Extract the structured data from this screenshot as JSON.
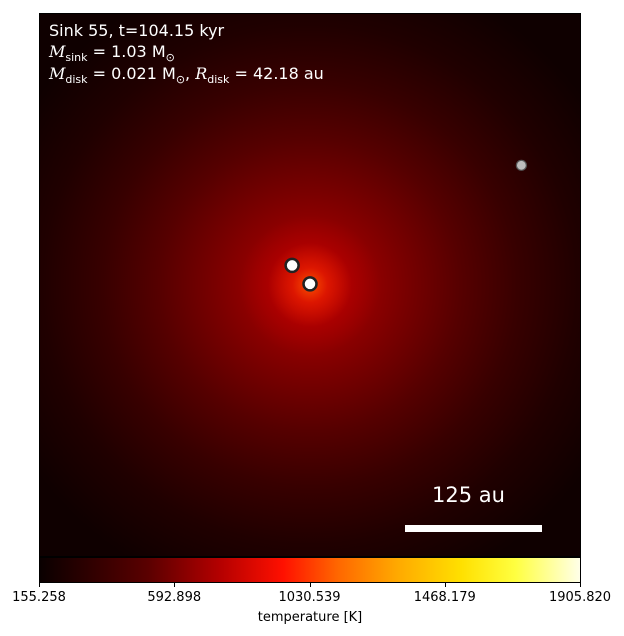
{
  "chart_data": {
    "type": "heatmap",
    "annotation": {
      "line1": "Sink 55, t=104.15 kyr",
      "line2_sym": "M",
      "line2_sub": "sink",
      "line2_rest": " = 1.03 M",
      "line2_sun": "⊙",
      "line3_sym": "M",
      "line3_sub": "disk",
      "line3_mid": " = 0.021 M",
      "line3_sun": "⊙",
      "line3_sym2": "R",
      "line3_sub2": "disk",
      "line3_rest": " = 42.18 au"
    },
    "scale_bar_label": "125 au",
    "colorbar": {
      "label": "temperature [K]",
      "min": 155.258,
      "max": 1905.82,
      "ticks": [
        "155.258",
        "592.898",
        "1030.539",
        "1468.179",
        "1905.820"
      ],
      "tick_values": [
        155.258,
        592.898,
        1030.539,
        1468.179,
        1905.82
      ],
      "colormap": "hot"
    },
    "sinks": [
      {
        "label": "sink-1",
        "x": 0.467,
        "y": 0.464,
        "style": "bright"
      },
      {
        "label": "sink-2",
        "x": 0.5,
        "y": 0.498,
        "style": "bright"
      },
      {
        "label": "sink-3",
        "x": 0.89,
        "y": 0.28,
        "style": "dim"
      }
    ]
  }
}
